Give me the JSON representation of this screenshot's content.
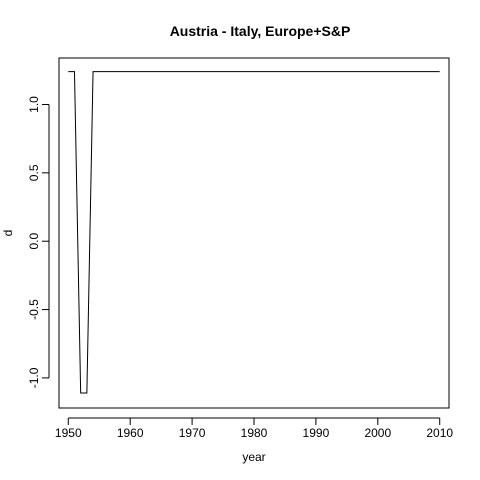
{
  "chart_data": {
    "type": "line",
    "title": "Austria - Italy, Europe+S&P",
    "xlabel": "year",
    "ylabel": "d",
    "xlim": [
      1948.5,
      2011.5
    ],
    "ylim": [
      -1.22,
      1.34
    ],
    "x_ticks": [
      1950,
      1960,
      1970,
      1980,
      1990,
      2000,
      2010
    ],
    "x_tick_labels": [
      "1950",
      "1960",
      "1970",
      "1980",
      "1990",
      "2000",
      "2010"
    ],
    "y_ticks": [
      -1.0,
      -0.5,
      0.0,
      0.5,
      1.0
    ],
    "y_tick_labels": [
      "-1.0",
      "-0.5",
      "0.0",
      "0.5",
      "1.0"
    ],
    "grid": false,
    "series": [
      {
        "x": [
          1950,
          1951,
          1952,
          1953,
          1954,
          1955,
          1956,
          1957,
          1958,
          1959,
          1960,
          1961,
          1962,
          1963,
          1964,
          1965,
          1966,
          1967,
          1968,
          1969,
          1970,
          1971,
          1972,
          1973,
          1974,
          1975,
          1976,
          1977,
          1978,
          1979,
          1980,
          1981,
          1982,
          1983,
          1984,
          1985,
          1986,
          1987,
          1988,
          1989,
          1990,
          1991,
          1992,
          1993,
          1994,
          1995,
          1996,
          1997,
          1998,
          1999,
          2000,
          2001,
          2002,
          2003,
          2004,
          2005,
          2006,
          2007,
          2008,
          2009,
          2010
        ],
        "y": [
          1.24,
          1.24,
          -1.11,
          -1.11,
          1.24,
          1.24,
          1.24,
          1.24,
          1.24,
          1.24,
          1.24,
          1.24,
          1.24,
          1.24,
          1.24,
          1.24,
          1.24,
          1.24,
          1.24,
          1.24,
          1.24,
          1.24,
          1.24,
          1.24,
          1.24,
          1.24,
          1.24,
          1.24,
          1.24,
          1.24,
          1.24,
          1.24,
          1.24,
          1.24,
          1.24,
          1.24,
          1.24,
          1.24,
          1.24,
          1.24,
          1.24,
          1.24,
          1.24,
          1.24,
          1.24,
          1.24,
          1.24,
          1.24,
          1.24,
          1.24,
          1.24,
          1.24,
          1.24,
          1.24,
          1.24,
          1.24,
          1.24,
          1.24,
          1.24,
          1.24,
          1.24
        ],
        "color": "#000000"
      }
    ]
  }
}
